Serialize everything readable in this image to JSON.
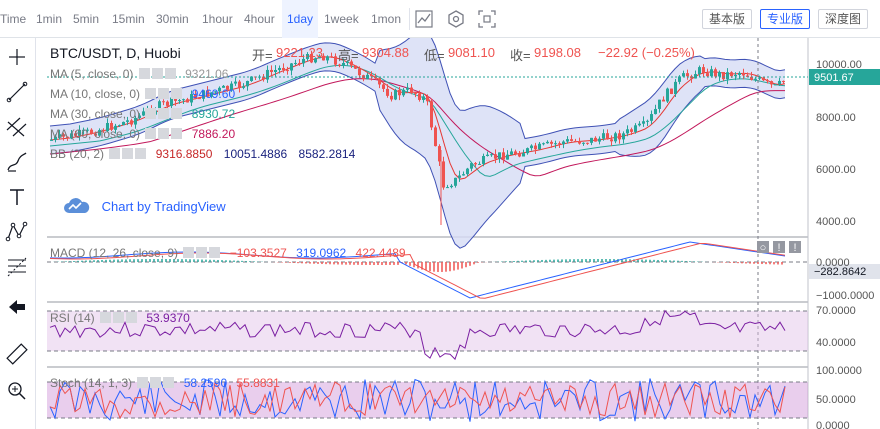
{
  "toolbar": {
    "timeframes": [
      "Time",
      "1min",
      "5min",
      "15min",
      "30min",
      "1hour",
      "4hour",
      "1day",
      "1week",
      "1mon"
    ],
    "active": "1day",
    "versions": [
      "基本版",
      "专业版",
      "深度图"
    ],
    "active_version": "专业版",
    "icons": [
      "chart-type-icon",
      "indicator-settings-icon",
      "fullscreen-icon"
    ]
  },
  "left_tools": [
    "crosshair-icon",
    "trend-line-icon",
    "channel-icon",
    "brush-icon",
    "text-icon",
    "pattern-icon",
    "fib-icon",
    "back-arrow-icon",
    "ruler-icon",
    "zoom-icon"
  ],
  "header": {
    "symbol": "BTC/USDT, D, Huobi",
    "open_label": "开=",
    "open": "9221.23",
    "high_label": "高=",
    "high": "9304.88",
    "low_label": "低=",
    "low": "9081.10",
    "close_label": "收=",
    "close": "9198.08",
    "change": "−22.92 (−0.25%)"
  },
  "indicators": {
    "ma5": {
      "label": "MA (5, close, 0)",
      "value": "9321.06",
      "color": "#bdbdbd"
    },
    "ma10": {
      "label": "MA (10, close, 0)",
      "value": "9469.60",
      "color": "#2962ff"
    },
    "ma30": {
      "label": "MA (30, close, 0)",
      "value": "8930.72",
      "color": "#26a69a"
    },
    "ma60": {
      "label": "MA (60, close, 0)",
      "value": "7886.20",
      "color": "#c2185b"
    },
    "bb": {
      "label": "BB (20, 2)",
      "basis": "9316.8850",
      "upper": "10051.4886",
      "lower": "8582.2814"
    },
    "macd": {
      "label": "MACD (12, 26, close, 9)",
      "hist": "−103.3527",
      "macd": "319.0962",
      "signal": "422.4489"
    },
    "rsi": {
      "label": "RSI (14)",
      "value": "53.9370"
    },
    "stoch": {
      "label": "Stoch (14, 1, 3)",
      "k": "58.2590",
      "d": "55.8831"
    }
  },
  "watermark": "Chart by TradingView",
  "price_axis": {
    "main": [
      "10000.00",
      "8000.00",
      "6000.00",
      "4000.00"
    ],
    "current": "9501.67",
    "macd": [
      "0.0000",
      "−1000.0000"
    ],
    "macd_current": "−282.8642",
    "rsi": [
      "70.0000",
      "40.0000"
    ],
    "stoch": [
      "100.0000",
      "50.0000",
      "0.0000"
    ]
  },
  "colors": {
    "up": "#26a69a",
    "down": "#ef5350",
    "bb_fill": "#d6dcf5",
    "accent": "#2962ff"
  }
}
